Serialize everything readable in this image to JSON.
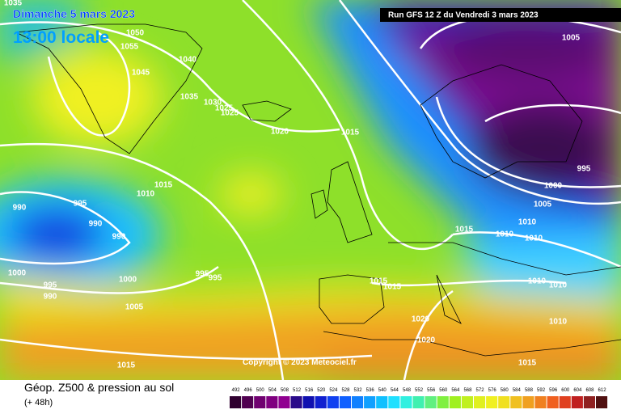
{
  "header": {
    "date": "Dimanche 5 mars 2023",
    "time": "13:00 locale",
    "run": "Run GFS 12 Z du Vendredi 3 mars 2023"
  },
  "footer": {
    "title": "Géop. Z500 & pression au sol",
    "lead": "(+ 48h)",
    "copyright": "Copyright © 2023 Meteociel.fr"
  },
  "isobar_labels": [
    "1035",
    "1050",
    "1055",
    "1040",
    "1045",
    "1035",
    "1030",
    "1025",
    "1025",
    "1020",
    "1015",
    "1005",
    "995",
    "1000",
    "1005",
    "1015",
    "1010",
    "990",
    "995",
    "990",
    "990",
    "1000",
    "995",
    "990",
    "1000",
    "995",
    "995",
    "1005",
    "1015",
    "1015",
    "1015",
    "1010",
    "1010",
    "1010",
    "1010",
    "1010",
    "1020",
    "1020",
    "1010",
    "1015",
    "1015"
  ],
  "scale": [
    "492",
    "496",
    "500",
    "504",
    "508",
    "512",
    "516",
    "520",
    "524",
    "528",
    "532",
    "536",
    "540",
    "544",
    "548",
    "552",
    "556",
    "560",
    "564",
    "568",
    "572",
    "576",
    "580",
    "584",
    "588",
    "592",
    "596",
    "600",
    "604",
    "608",
    "612"
  ]
}
